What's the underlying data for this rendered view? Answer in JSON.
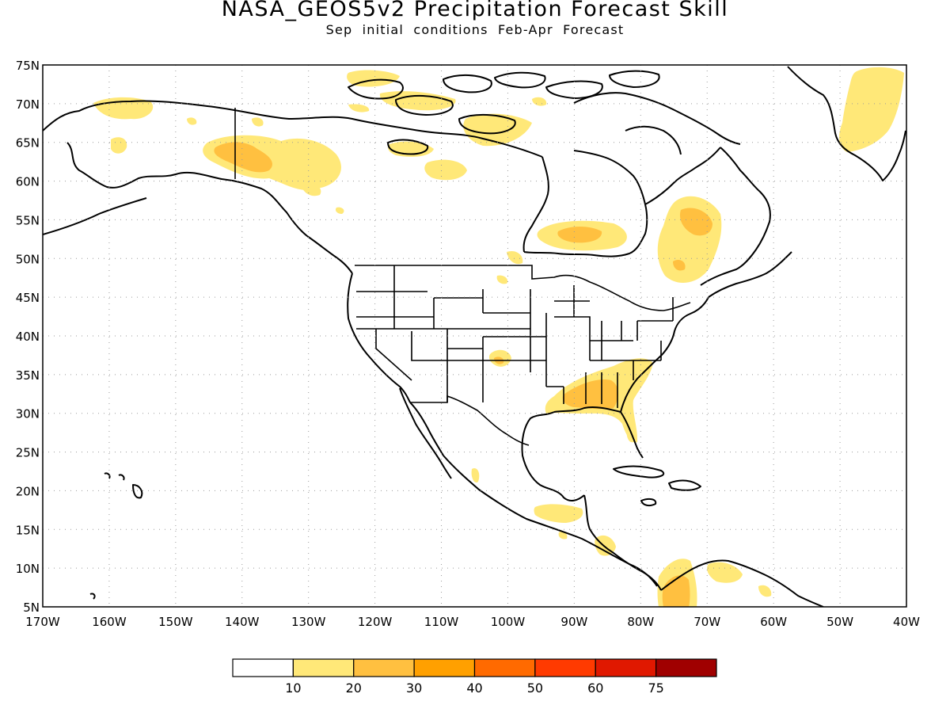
{
  "header": {
    "title": "NASA_GEOS5v2 Precipitation Forecast Skill",
    "subtitle": "Sep initial conditions  Feb-Apr Forecast"
  },
  "map": {
    "region": "North America",
    "projection": "cylindrical equidistant",
    "lon_range": [
      -170,
      -40
    ],
    "lat_range": [
      5,
      75
    ],
    "lat_labels": [
      "75N",
      "70N",
      "65N",
      "60N",
      "55N",
      "50N",
      "45N",
      "40N",
      "35N",
      "30N",
      "25N",
      "20N",
      "15N",
      "10N",
      "5N"
    ],
    "lon_labels": [
      "170W",
      "160W",
      "150W",
      "140W",
      "130W",
      "120W",
      "110W",
      "100W",
      "90W",
      "80W",
      "70W",
      "60W",
      "50W",
      "40W"
    ],
    "grid_style": "dotted"
  },
  "colorbar": {
    "labels": [
      "10",
      "20",
      "30",
      "40",
      "50",
      "60",
      "75"
    ],
    "colors": [
      "#ffffff",
      "#ffe878",
      "#ffc040",
      "#ffa000",
      "#ff6a00",
      "#ff3a00",
      "#e01800",
      "#a00000"
    ]
  },
  "skill_regions": [
    {
      "name": "Yukon / SE Alaska",
      "lon": -138,
      "lat": 62.5,
      "level": 2
    },
    {
      "name": "N Alaska",
      "lon": -158,
      "lat": 69,
      "level": 1
    },
    {
      "name": "W Alaska",
      "lon": -162,
      "lat": 63,
      "level": 1
    },
    {
      "name": "Arctic islands",
      "lon": -115,
      "lat": 70.5,
      "level": 1
    },
    {
      "name": "Baffin region",
      "lon": -95,
      "lat": 66,
      "level": 1
    },
    {
      "name": "Hudson Bay south",
      "lon": -88,
      "lat": 53,
      "level": 2
    },
    {
      "name": "Labrador",
      "lon": -73,
      "lat": 54,
      "level": 2
    },
    {
      "name": "Greenland east",
      "lon": -47,
      "lat": 68,
      "level": 1
    },
    {
      "name": "SE United States",
      "lon": -84,
      "lat": 32,
      "level": 2
    },
    {
      "name": "S Great Plains",
      "lon": -102,
      "lat": 37,
      "level": 1
    },
    {
      "name": "Central America",
      "lon": -88,
      "lat": 16,
      "level": 1
    },
    {
      "name": "Colombia",
      "lon": -74,
      "lat": 7,
      "level": 2
    },
    {
      "name": "Venezuela",
      "lon": -70,
      "lat": 9,
      "level": 1
    }
  ]
}
